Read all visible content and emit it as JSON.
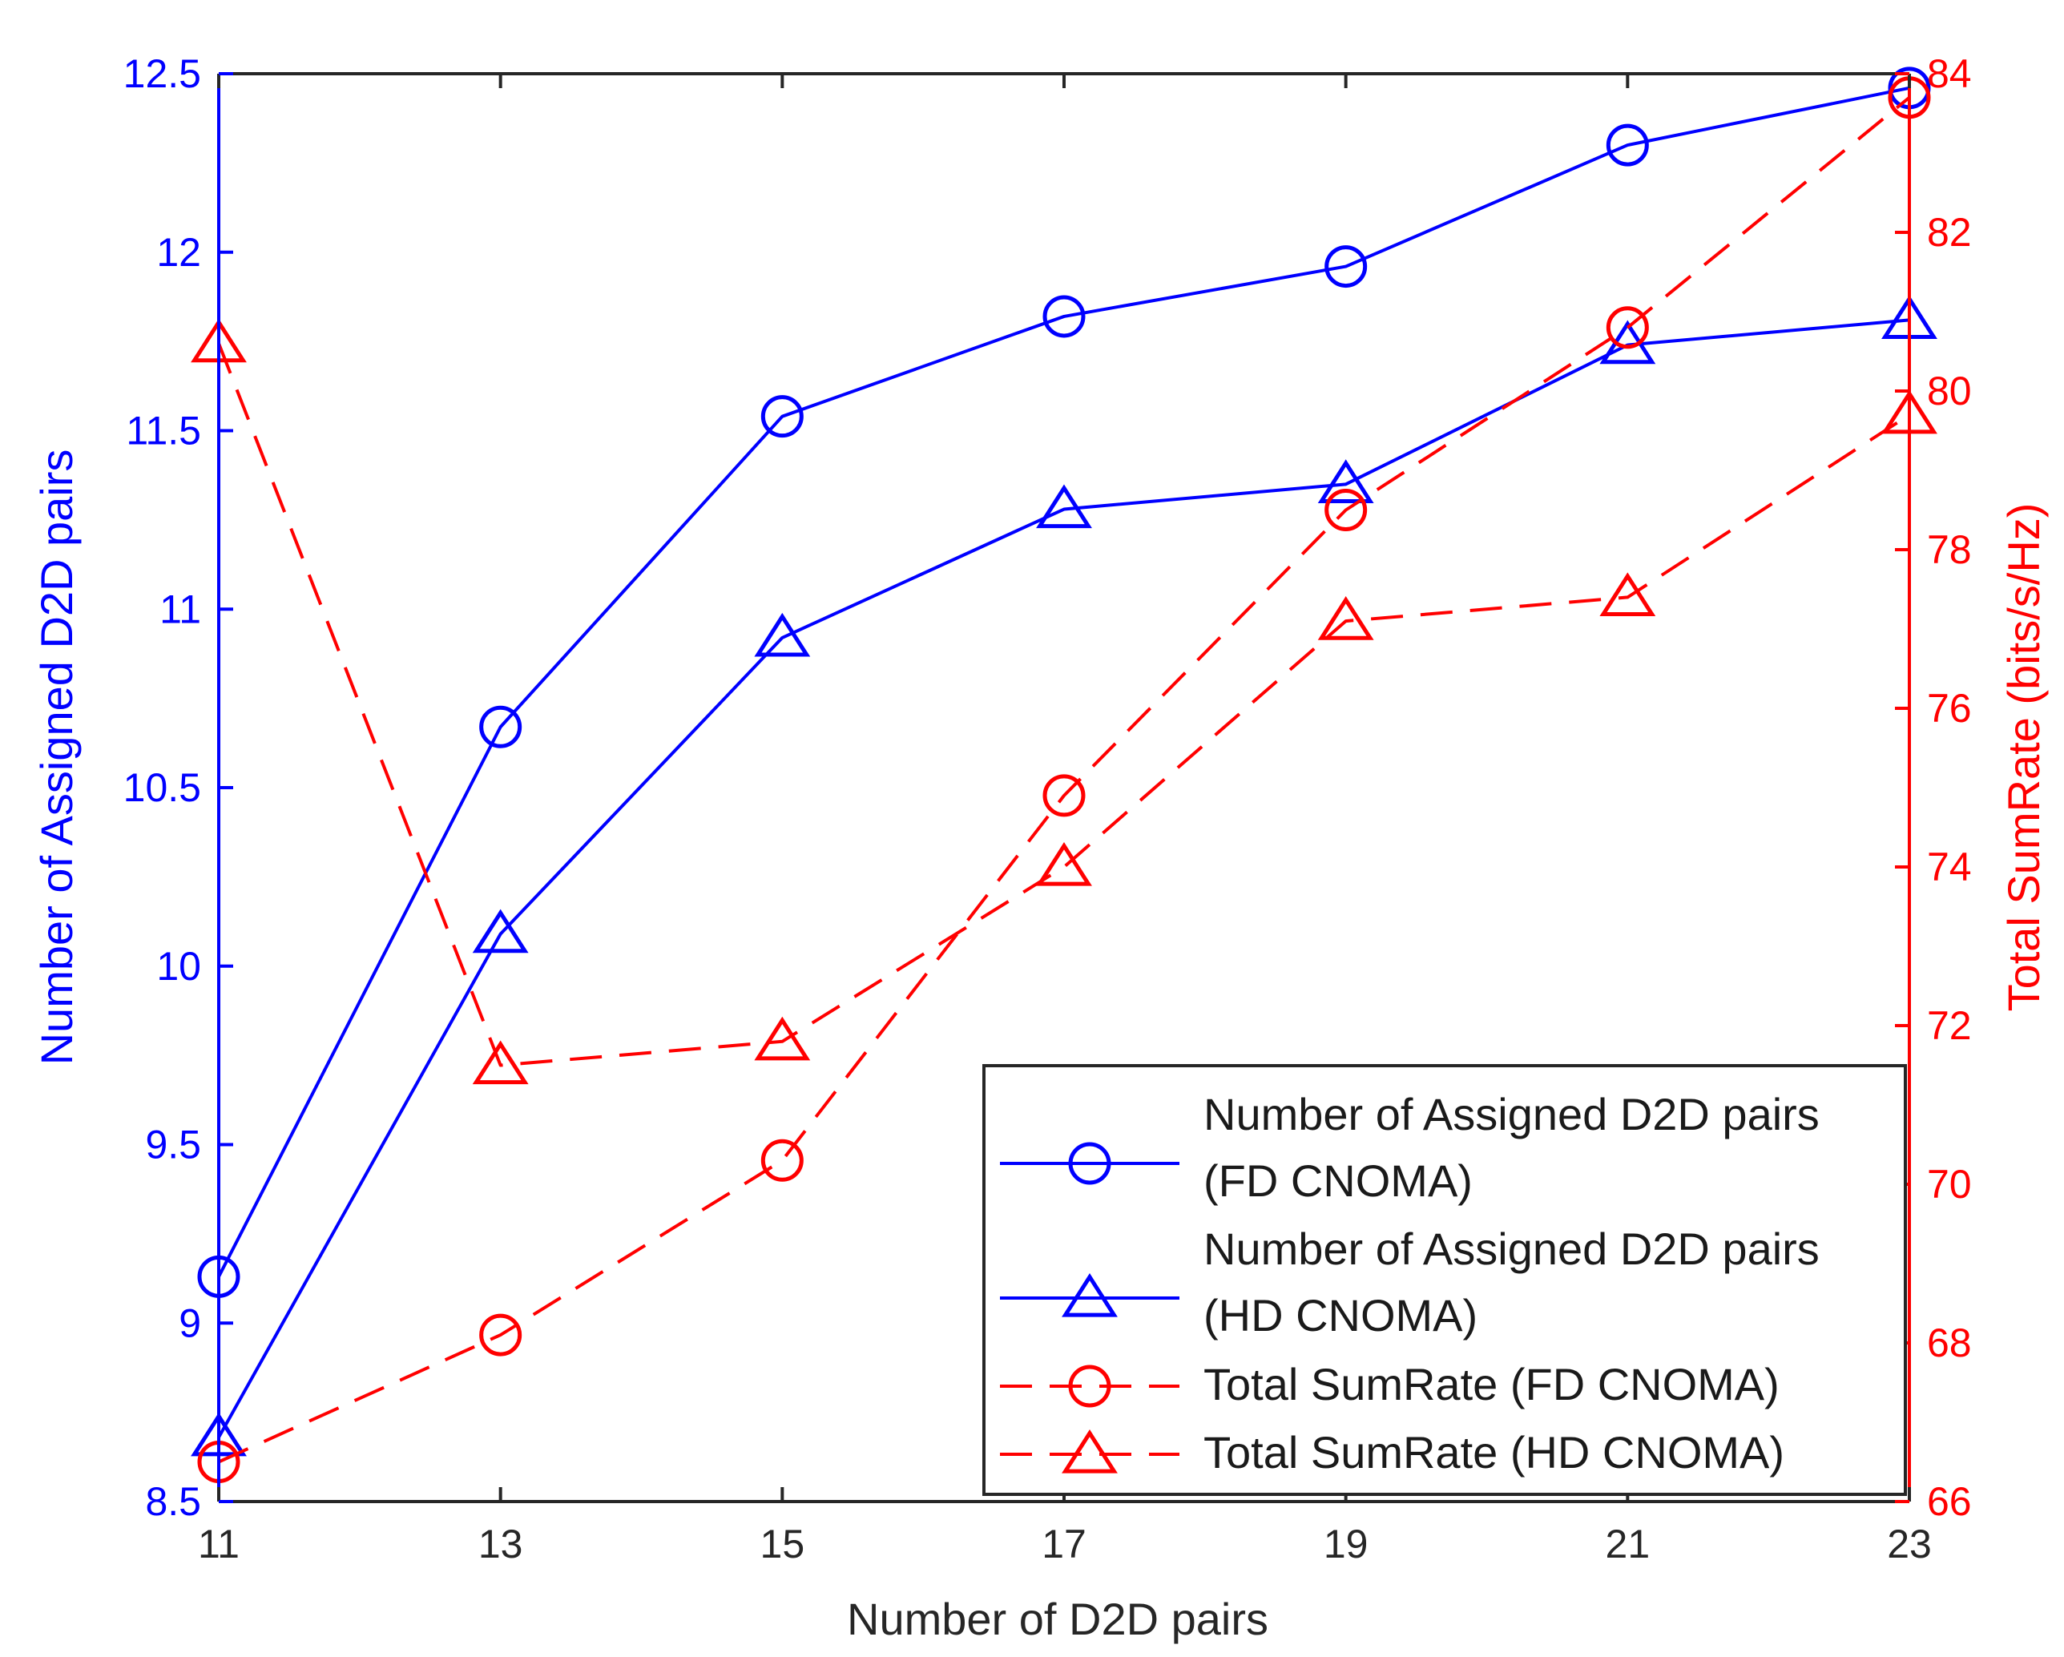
{
  "chart_data": {
    "type": "line",
    "x": [
      11,
      13,
      15,
      17,
      19,
      21,
      23
    ],
    "xlabel": "Number of D2D pairs",
    "xlim": [
      11,
      23
    ],
    "xticks": [
      "11",
      "13",
      "15",
      "17",
      "19",
      "21",
      "23"
    ],
    "ylabel_left": "Number of Assigned D2D pairs",
    "ylim_left": [
      8.5,
      12.5
    ],
    "yticks_left": [
      "8.5",
      "9",
      "9.5",
      "10",
      "10.5",
      "11",
      "11.5",
      "12",
      "12.5"
    ],
    "ylabel_right": "Total SumRate (bits/s/Hz)",
    "ylim_right": [
      66,
      84
    ],
    "yticks_right": [
      "66",
      "68",
      "70",
      "72",
      "74",
      "76",
      "78",
      "80",
      "82",
      "84"
    ],
    "left_color": "#0000ff",
    "right_color": "#ff0000",
    "series": [
      {
        "name_line1": "Number of Assigned D2D pairs",
        "name_line2": "(FD CNOMA)",
        "axis": "left",
        "marker": "circle",
        "linestyle": "solid",
        "color": "#0000ff",
        "values": [
          9.13,
          10.67,
          11.54,
          11.82,
          11.96,
          12.3,
          12.46
        ]
      },
      {
        "name_line1": "Number of Assigned D2D pairs",
        "name_line2": "(HD CNOMA)",
        "axis": "left",
        "marker": "triangle",
        "linestyle": "solid",
        "color": "#0000ff",
        "values": [
          8.68,
          10.09,
          10.92,
          11.28,
          11.35,
          11.74,
          11.81
        ]
      },
      {
        "name_line1": "Total SumRate (FD CNOMA)",
        "name_line2": "",
        "axis": "right",
        "marker": "circle",
        "linestyle": "dashed",
        "color": "#ff0000",
        "values": [
          66.5,
          68.1,
          70.3,
          74.9,
          78.5,
          80.8,
          83.7
        ]
      },
      {
        "name_line1": "Total SumRate (HD CNOMA)",
        "name_line2": "",
        "axis": "right",
        "marker": "triangle",
        "linestyle": "dashed",
        "color": "#ff0000",
        "values": [
          80.6,
          71.5,
          71.8,
          74.0,
          77.1,
          77.4,
          79.7
        ]
      }
    ],
    "legend_position": "bottom-right"
  }
}
